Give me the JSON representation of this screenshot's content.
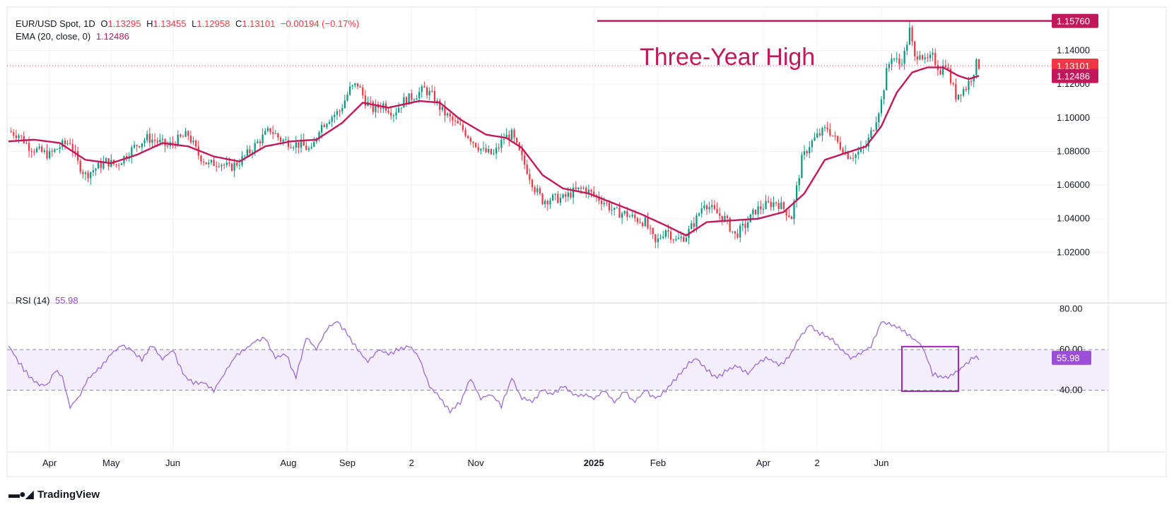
{
  "header": {
    "symbol": "EUR/USD Spot, 1D",
    "open_label": "O",
    "open": "1.13295",
    "high_label": "H",
    "high": "1.13455",
    "low_label": "L",
    "low": "1.12958",
    "close_label": "C",
    "close": "1.13101",
    "change": "−0.00194 (−0.17%)",
    "ema_label": "EMA (20, close, 0)",
    "ema_value": "1.12486",
    "rsi_label": "RSI (14)",
    "rsi_value": "55.98"
  },
  "annotation": {
    "text": "Three-Year High",
    "level_label": "1.15760",
    "level": 1.1576
  },
  "price_tags": {
    "close": "1.13101",
    "ema": "1.12486"
  },
  "rsi_tag": "55.98",
  "branding": {
    "name": "TradingView",
    "icon": "tradingview-logo-icon"
  },
  "colors": {
    "up": "#089981",
    "down": "#f23645",
    "ema": "#c2185b",
    "rsi": "#8e4ec6",
    "annotation": "#c2185b",
    "band_fill": "#f3eefa",
    "box": "#9c27b0"
  },
  "chart_data": [
    {
      "type": "candlestick",
      "title": "EUR/USD Spot, 1D",
      "interval": "1D",
      "y_ticks": [
        "1.14000",
        "1.12000",
        "1.10000",
        "1.08000",
        "1.06000",
        "1.04000",
        "1.02000"
      ],
      "ylim": [
        1.0,
        1.165
      ],
      "x_ticks": [
        "Apr",
        "May",
        "Jun",
        "Aug",
        "Sep",
        "2",
        "Nov",
        "2025",
        "Feb",
        "Apr",
        "2",
        "Jun"
      ],
      "series": [
        {
          "name": "EMA (20, close, 0)",
          "last": 1.12486
        }
      ],
      "close_path": [
        [
          0,
          1.092
        ],
        [
          4,
          1.09
        ],
        [
          8,
          1.083
        ],
        [
          12,
          1.08
        ],
        [
          16,
          1.078
        ],
        [
          20,
          1.083
        ],
        [
          24,
          1.086
        ],
        [
          27,
          1.073
        ],
        [
          30,
          1.066
        ],
        [
          34,
          1.07
        ],
        [
          38,
          1.074
        ],
        [
          42,
          1.072
        ],
        [
          46,
          1.078
        ],
        [
          50,
          1.084
        ],
        [
          54,
          1.088
        ],
        [
          58,
          1.086
        ],
        [
          62,
          1.083
        ],
        [
          66,
          1.087
        ],
        [
          70,
          1.09
        ],
        [
          74,
          1.078
        ],
        [
          78,
          1.072
        ],
        [
          82,
          1.074
        ],
        [
          86,
          1.07
        ],
        [
          90,
          1.074
        ],
        [
          94,
          1.08
        ],
        [
          98,
          1.087
        ],
        [
          102,
          1.093
        ],
        [
          106,
          1.087
        ],
        [
          110,
          1.085
        ],
        [
          114,
          1.084
        ],
        [
          118,
          1.08
        ],
        [
          121,
          1.094
        ],
        [
          125,
          1.1
        ],
        [
          129,
          1.104
        ],
        [
          133,
          1.117
        ],
        [
          136,
          1.12
        ],
        [
          139,
          1.11
        ],
        [
          142,
          1.105
        ],
        [
          146,
          1.108
        ],
        [
          150,
          1.103
        ],
        [
          154,
          1.11
        ],
        [
          158,
          1.113
        ],
        [
          162,
          1.117
        ],
        [
          165,
          1.113
        ],
        [
          169,
          1.104
        ],
        [
          173,
          1.098
        ],
        [
          177,
          1.093
        ],
        [
          181,
          1.086
        ],
        [
          185,
          1.08
        ],
        [
          189,
          1.078
        ],
        [
          193,
          1.088
        ],
        [
          196,
          1.09
        ],
        [
          199,
          1.079
        ],
        [
          202,
          1.069
        ],
        [
          205,
          1.058
        ],
        [
          208,
          1.051
        ],
        [
          212,
          1.052
        ],
        [
          216,
          1.052
        ],
        [
          220,
          1.056
        ],
        [
          224,
          1.058
        ],
        [
          228,
          1.054
        ],
        [
          232,
          1.05
        ],
        [
          236,
          1.044
        ],
        [
          240,
          1.043
        ],
        [
          244,
          1.04
        ],
        [
          248,
          1.038
        ],
        [
          252,
          1.025
        ],
        [
          256,
          1.034
        ],
        [
          260,
          1.027
        ],
        [
          264,
          1.03
        ],
        [
          268,
          1.04
        ],
        [
          271,
          1.05
        ],
        [
          275,
          1.044
        ],
        [
          279,
          1.04
        ],
        [
          283,
          1.03
        ],
        [
          287,
          1.036
        ],
        [
          291,
          1.045
        ],
        [
          295,
          1.048
        ],
        [
          299,
          1.05
        ],
        [
          302,
          1.046
        ],
        [
          305,
          1.041
        ],
        [
          309,
          1.075
        ],
        [
          312,
          1.084
        ],
        [
          315,
          1.089
        ],
        [
          319,
          1.094
        ],
        [
          323,
          1.085
        ],
        [
          327,
          1.078
        ],
        [
          330,
          1.078
        ],
        [
          334,
          1.083
        ],
        [
          337,
          1.095
        ],
        [
          340,
          1.11
        ],
        [
          342,
          1.127
        ],
        [
          344,
          1.137
        ],
        [
          347,
          1.132
        ],
        [
          349,
          1.138
        ],
        [
          351,
          1.152
        ],
        [
          353,
          1.135
        ],
        [
          355,
          1.14
        ],
        [
          357,
          1.133
        ],
        [
          360,
          1.136
        ],
        [
          363,
          1.128
        ],
        [
          365,
          1.133
        ],
        [
          367,
          1.122
        ],
        [
          369,
          1.113
        ],
        [
          371,
          1.116
        ],
        [
          373,
          1.118
        ],
        [
          375,
          1.124
        ],
        [
          377,
          1.132
        ],
        [
          378,
          1.131
        ]
      ],
      "ema_path": [
        [
          0,
          1.086
        ],
        [
          10,
          1.087
        ],
        [
          20,
          1.085
        ],
        [
          30,
          1.075
        ],
        [
          40,
          1.073
        ],
        [
          50,
          1.078
        ],
        [
          60,
          1.085
        ],
        [
          70,
          1.083
        ],
        [
          80,
          1.077
        ],
        [
          90,
          1.074
        ],
        [
          100,
          1.083
        ],
        [
          110,
          1.086
        ],
        [
          120,
          1.087
        ],
        [
          130,
          1.097
        ],
        [
          138,
          1.109
        ],
        [
          148,
          1.106
        ],
        [
          160,
          1.11
        ],
        [
          168,
          1.109
        ],
        [
          176,
          1.099
        ],
        [
          186,
          1.09
        ],
        [
          194,
          1.088
        ],
        [
          200,
          1.082
        ],
        [
          208,
          1.066
        ],
        [
          216,
          1.058
        ],
        [
          226,
          1.055
        ],
        [
          236,
          1.049
        ],
        [
          246,
          1.043
        ],
        [
          256,
          1.036
        ],
        [
          264,
          1.03
        ],
        [
          272,
          1.038
        ],
        [
          282,
          1.039
        ],
        [
          292,
          1.04
        ],
        [
          302,
          1.044
        ],
        [
          310,
          1.055
        ],
        [
          318,
          1.075
        ],
        [
          326,
          1.079
        ],
        [
          334,
          1.083
        ],
        [
          340,
          1.095
        ],
        [
          346,
          1.115
        ],
        [
          352,
          1.127
        ],
        [
          358,
          1.13
        ],
        [
          364,
          1.13
        ],
        [
          370,
          1.125
        ],
        [
          374,
          1.123
        ],
        [
          378,
          1.125
        ]
      ]
    },
    {
      "type": "line",
      "title": "RSI (14)",
      "y_ticks": [
        "80.00",
        "60.00",
        "40.00"
      ],
      "ylim": [
        20,
        82
      ],
      "band": [
        40,
        60
      ],
      "series": [
        {
          "name": "RSI (14)",
          "last": 55.98,
          "points": [
            [
              0,
              62
            ],
            [
              5,
              52
            ],
            [
              10,
              44
            ],
            [
              15,
              42
            ],
            [
              18,
              50
            ],
            [
              21,
              46
            ],
            [
              24,
              32
            ],
            [
              27,
              36
            ],
            [
              31,
              46
            ],
            [
              35,
              50
            ],
            [
              40,
              58
            ],
            [
              44,
              62
            ],
            [
              48,
              60
            ],
            [
              52,
              55
            ],
            [
              56,
              62
            ],
            [
              60,
              55
            ],
            [
              64,
              60
            ],
            [
              68,
              48
            ],
            [
              72,
              44
            ],
            [
              76,
              44
            ],
            [
              80,
              40
            ],
            [
              84,
              48
            ],
            [
              88,
              56
            ],
            [
              92,
              60
            ],
            [
              96,
              64
            ],
            [
              100,
              66
            ],
            [
              104,
              56
            ],
            [
              108,
              58
            ],
            [
              112,
              46
            ],
            [
              116,
              66
            ],
            [
              120,
              60
            ],
            [
              124,
              70
            ],
            [
              128,
              74
            ],
            [
              132,
              68
            ],
            [
              136,
              60
            ],
            [
              140,
              54
            ],
            [
              144,
              60
            ],
            [
              148,
              58
            ],
            [
              152,
              60
            ],
            [
              156,
              62
            ],
            [
              160,
              56
            ],
            [
              164,
              42
            ],
            [
              168,
              36
            ],
            [
              172,
              30
            ],
            [
              176,
              34
            ],
            [
              180,
              46
            ],
            [
              184,
              36
            ],
            [
              188,
              38
            ],
            [
              192,
              32
            ],
            [
              196,
              46
            ],
            [
              200,
              36
            ],
            [
              204,
              34
            ],
            [
              208,
              40
            ],
            [
              212,
              38
            ],
            [
              216,
              42
            ],
            [
              220,
              38
            ],
            [
              224,
              38
            ],
            [
              228,
              36
            ],
            [
              232,
              40
            ],
            [
              236,
              34
            ],
            [
              240,
              40
            ],
            [
              244,
              34
            ],
            [
              248,
              40
            ],
            [
              252,
              36
            ],
            [
              256,
              40
            ],
            [
              260,
              46
            ],
            [
              264,
              52
            ],
            [
              268,
              56
            ],
            [
              272,
              50
            ],
            [
              276,
              46
            ],
            [
              280,
              50
            ],
            [
              284,
              52
            ],
            [
              288,
              48
            ],
            [
              292,
              54
            ],
            [
              296,
              56
            ],
            [
              300,
              52
            ],
            [
              304,
              56
            ],
            [
              308,
              66
            ],
            [
              312,
              72
            ],
            [
              316,
              68
            ],
            [
              320,
              66
            ],
            [
              324,
              60
            ],
            [
              328,
              56
            ],
            [
              332,
              58
            ],
            [
              336,
              62
            ],
            [
              340,
              74
            ],
            [
              344,
              72
            ],
            [
              348,
              70
            ],
            [
              352,
              66
            ],
            [
              356,
              62
            ],
            [
              360,
              48
            ],
            [
              364,
              46
            ],
            [
              368,
              48
            ],
            [
              372,
              52
            ],
            [
              376,
              56
            ],
            [
              378,
              55.98
            ]
          ]
        }
      ]
    }
  ]
}
